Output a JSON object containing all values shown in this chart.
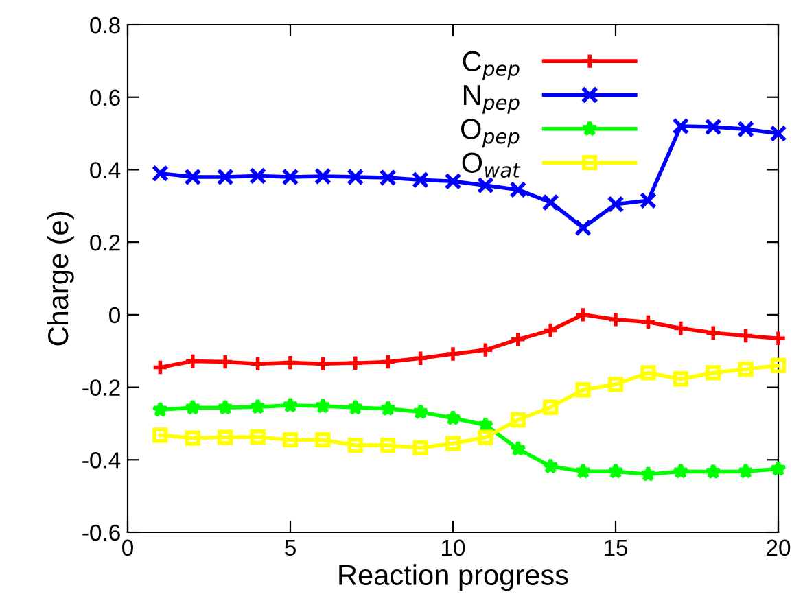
{
  "chart_data": {
    "type": "line",
    "xlabel": "Reaction progress",
    "ylabel": "Charge (e)",
    "x": [
      1,
      2,
      3,
      4,
      5,
      6,
      7,
      8,
      9,
      10,
      11,
      12,
      13,
      14,
      15,
      16,
      17,
      18,
      19,
      20
    ],
    "xlim": [
      0,
      20
    ],
    "xticks": [
      0,
      5,
      10,
      15,
      20
    ],
    "ylim": [
      -0.6,
      0.8
    ],
    "yticks": [
      {
        "value": -0.6,
        "label": "-0.6"
      },
      {
        "value": -0.4,
        "label": "-0.4"
      },
      {
        "value": -0.2,
        "label": "-0.2"
      },
      0,
      0.2,
      0.4,
      0.6,
      0.8
    ],
    "grid": false,
    "legend": "top right",
    "line_style": "solid",
    "series": [
      {
        "name": "C$_{pep}$",
        "color": "#ff0000",
        "marker": "plus",
        "values": [
          -0.145,
          -0.128,
          -0.13,
          -0.135,
          -0.132,
          -0.135,
          -0.133,
          -0.13,
          -0.12,
          -0.108,
          -0.097,
          -0.068,
          -0.043,
          0,
          -0.013,
          -0.02,
          -0.037,
          -0.05,
          -0.058,
          -0.065
        ]
      },
      {
        "name": "N$_{pep}$",
        "color": "#0000ff",
        "marker": "cross",
        "values": [
          0.39,
          0.38,
          0.38,
          0.383,
          0.38,
          0.382,
          0.38,
          0.378,
          0.372,
          0.368,
          0.357,
          0.345,
          0.31,
          0.24,
          0.305,
          0.315,
          0.52,
          0.518,
          0.512,
          0.5
        ]
      },
      {
        "name": "O$_{pep}$",
        "color": "#00ff00",
        "marker": "star",
        "values": [
          -0.262,
          -0.256,
          -0.256,
          -0.254,
          -0.25,
          -0.252,
          -0.256,
          -0.259,
          -0.268,
          -0.285,
          -0.304,
          -0.37,
          -0.418,
          -0.432,
          -0.432,
          -0.44,
          -0.432,
          -0.433,
          -0.432,
          -0.425
        ]
      },
      {
        "name": "O$_{wat}$",
        "color": "#ffff00",
        "marker": "square",
        "values": [
          -0.332,
          -0.34,
          -0.338,
          -0.337,
          -0.345,
          -0.345,
          -0.36,
          -0.36,
          -0.367,
          -0.355,
          -0.338,
          -0.29,
          -0.255,
          -0.207,
          -0.192,
          -0.16,
          -0.177,
          -0.16,
          -0.15,
          -0.14
        ]
      }
    ]
  }
}
